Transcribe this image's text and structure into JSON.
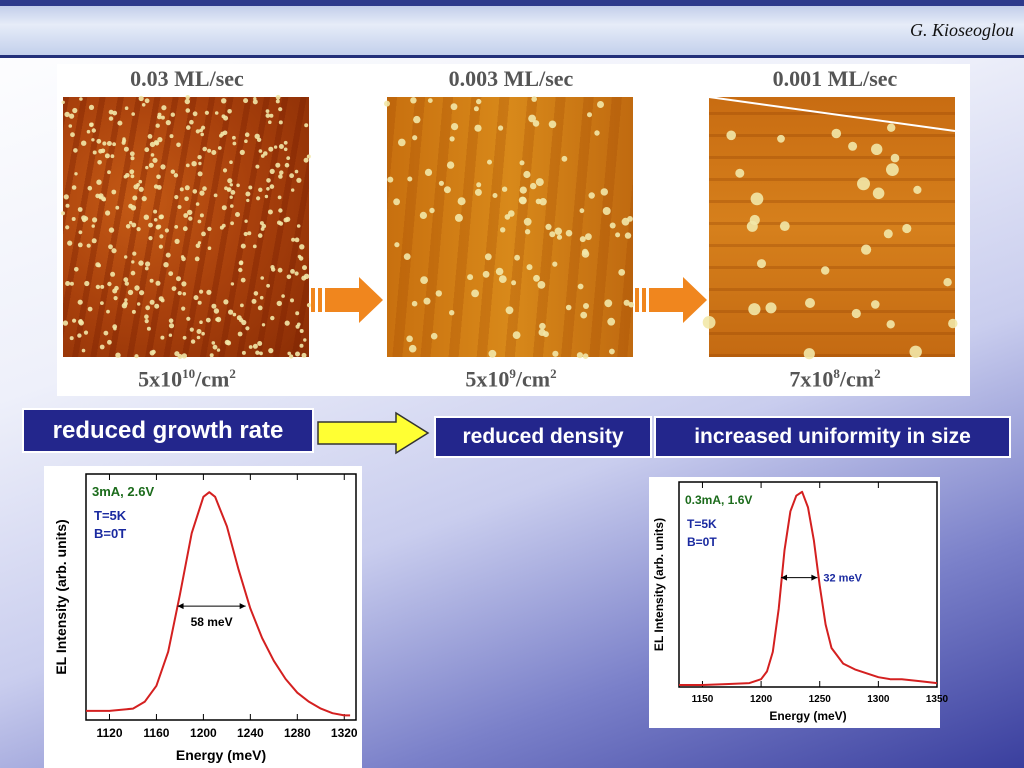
{
  "header": {
    "author": "G. Kioseoglou"
  },
  "afm": {
    "panels": [
      {
        "rate": "0.03 ML/sec",
        "density_base": "5x10",
        "density_exp": "10",
        "density_unit": "/cm",
        "density_unit_exp": "2"
      },
      {
        "rate": "0.003 ML/sec",
        "density_base": "5x10",
        "density_exp": "9",
        "density_unit": "/cm",
        "density_unit_exp": "2"
      },
      {
        "rate": "0.001 ML/sec",
        "density_base": "7x10",
        "density_exp": "8",
        "density_unit": "/cm",
        "density_unit_exp": "2"
      }
    ]
  },
  "labels": {
    "growth": "reduced growth rate",
    "density": "reduced density",
    "uniformity": "increased uniformity in size"
  },
  "colors": {
    "box_bg": "#23268c",
    "curve": "#d42020",
    "green_text": "#1b6b1b",
    "blue_text": "#1a2aa0",
    "arrow_yellow": "#ffff33",
    "arrow_orange": "#f0861e"
  },
  "chart_data": [
    {
      "type": "line",
      "annotation_current": "3mA, 2.6V",
      "annotation_temp": "T=5K",
      "annotation_field": "B=0T",
      "fwhm_label": "58 meV",
      "xlabel": "Energy (meV)",
      "ylabel": "EL Intensity (arb. units)",
      "xlim": [
        1100,
        1330
      ],
      "ylim": [
        0,
        1.08
      ],
      "xticks": [
        1120,
        1160,
        1200,
        1240,
        1280,
        1320
      ],
      "series": [
        {
          "x": [
            1100,
            1120,
            1140,
            1150,
            1160,
            1170,
            1180,
            1190,
            1200,
            1205,
            1210,
            1220,
            1230,
            1240,
            1250,
            1260,
            1270,
            1280,
            1290,
            1300,
            1310,
            1320,
            1325
          ],
          "y": [
            0.04,
            0.04,
            0.05,
            0.08,
            0.15,
            0.3,
            0.55,
            0.82,
            0.98,
            1.0,
            0.98,
            0.85,
            0.66,
            0.49,
            0.36,
            0.26,
            0.18,
            0.12,
            0.08,
            0.05,
            0.03,
            0.02,
            0.02
          ]
        }
      ],
      "fwhm_range": [
        1178,
        1236
      ],
      "fwhm_level": 0.5
    },
    {
      "type": "line",
      "annotation_current": "0.3mA, 1.6V",
      "annotation_temp": "T=5K",
      "annotation_field": "B=0T",
      "fwhm_label": "32 meV",
      "xlabel": "Energy (meV)",
      "ylabel": "EL Intensity (arb. units)",
      "xlim": [
        1130,
        1350
      ],
      "ylim": [
        0,
        1.05
      ],
      "xticks": [
        1150,
        1200,
        1250,
        1300,
        1350
      ],
      "series": [
        {
          "x": [
            1130,
            1150,
            1170,
            1190,
            1200,
            1205,
            1210,
            1215,
            1220,
            1225,
            1230,
            1235,
            1240,
            1245,
            1250,
            1255,
            1260,
            1270,
            1280,
            1290,
            1300,
            1310,
            1320,
            1335,
            1350
          ],
          "y": [
            0.01,
            0.01,
            0.015,
            0.02,
            0.04,
            0.08,
            0.18,
            0.4,
            0.7,
            0.9,
            0.98,
            1.0,
            0.92,
            0.75,
            0.52,
            0.32,
            0.2,
            0.12,
            0.09,
            0.07,
            0.05,
            0.04,
            0.04,
            0.03,
            0.02
          ]
        }
      ],
      "fwhm_range": [
        1217,
        1248
      ],
      "fwhm_level": 0.56
    }
  ]
}
